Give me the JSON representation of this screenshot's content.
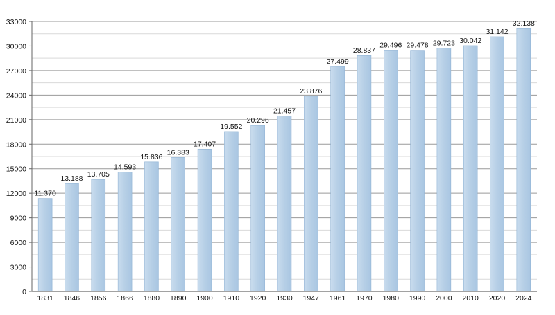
{
  "chart_data": {
    "type": "bar",
    "categories": [
      "1831",
      "1846",
      "1856",
      "1866",
      "1880",
      "1890",
      "1900",
      "1910",
      "1920",
      "1930",
      "1947",
      "1961",
      "1970",
      "1980",
      "1990",
      "2000",
      "2010",
      "2020",
      "2024"
    ],
    "values": [
      11370,
      13188,
      13705,
      14593,
      15836,
      16383,
      17407,
      19552,
      20296,
      21457,
      23876,
      27499,
      28837,
      29496,
      29478,
      29723,
      30042,
      31142,
      32138
    ],
    "value_labels": [
      "11.370",
      "13.188",
      "13.705",
      "14.593",
      "15.836",
      "16.383",
      "17.407",
      "19.552",
      "20.296",
      "21.457",
      "23.876",
      "27.499",
      "28.837",
      "29.496",
      "29.478",
      "29.723",
      "30.042",
      "31.142",
      "32.138"
    ],
    "y_ticks": [
      "0",
      "3000",
      "6000",
      "9000",
      "12000",
      "15000",
      "18000",
      "21000",
      "24000",
      "27000",
      "30000",
      "33000"
    ],
    "ylim": [
      0,
      33000
    ],
    "grid": true,
    "bar_color": "#b6cfe6",
    "bar_edge_color": "#8fb2d4",
    "grid_color": "#9a9a9a",
    "minor_grid_color": "#d9d9d9"
  }
}
